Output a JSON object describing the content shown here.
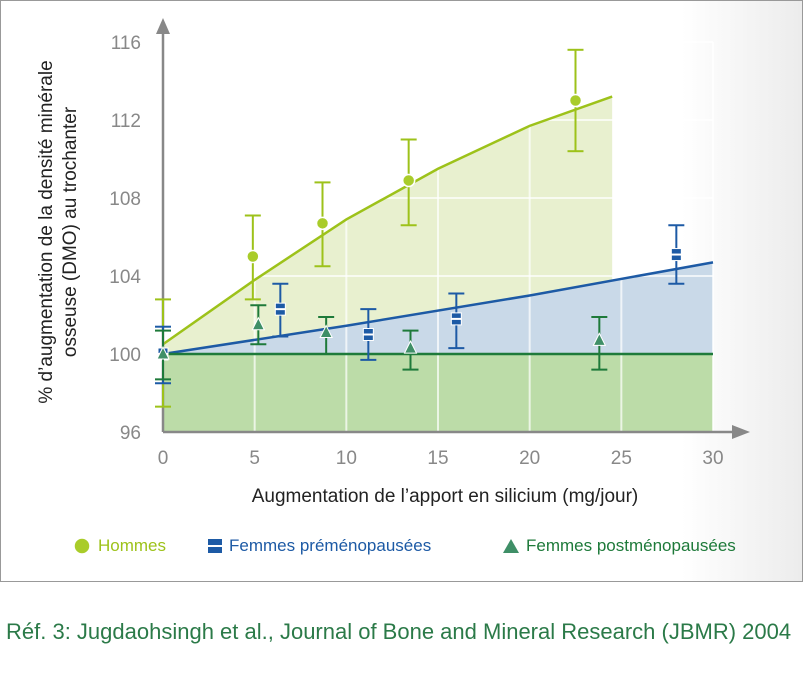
{
  "chart_data": {
    "type": "scatter",
    "xlabel": "Augmentation de l’apport en silicium (mg/jour)",
    "ylabel": "% d’augmentation de la densité minérale osseuse (DMO) au trochanter",
    "xlim": [
      0,
      30
    ],
    "ylim": [
      96,
      116
    ],
    "xticks": [
      "0",
      "5",
      "10",
      "15",
      "20",
      "25",
      "30"
    ],
    "yticks": [
      "96",
      "100",
      "104",
      "108",
      "112",
      "116"
    ],
    "grid": true,
    "legend_position": "bottom",
    "series": [
      {
        "name": "Hommes",
        "color": "#9dc21a",
        "fill": "#e8f0cf",
        "marker": "circle",
        "points": [
          {
            "x": 4.9,
            "y": 105.0,
            "lo": 102.8,
            "hi": 107.1
          },
          {
            "x": 8.7,
            "y": 106.7,
            "lo": 104.5,
            "hi": 108.8
          },
          {
            "x": 13.4,
            "y": 108.9,
            "lo": 106.6,
            "hi": 111.0
          },
          {
            "x": 22.5,
            "y": 113.0,
            "lo": 110.4,
            "hi": 115.6
          },
          {
            "x": 0,
            "y": 100,
            "lo": 97.3,
            "hi": 102.8,
            "nomarker": true
          }
        ],
        "fit": [
          [
            0,
            100.5
          ],
          [
            5,
            103.8
          ],
          [
            10,
            106.9
          ],
          [
            15,
            109.5
          ],
          [
            20,
            111.7
          ],
          [
            24.5,
            113.2
          ]
        ]
      },
      {
        "name": "Femmes préménopausées",
        "color": "#1d5aa5",
        "fill": "#c9d9e8",
        "marker": "bar",
        "points": [
          {
            "x": 0,
            "y": 100,
            "lo": 98.5,
            "hi": 101.4
          },
          {
            "x": 6.4,
            "y": 102.3,
            "lo": 100.9,
            "hi": 103.6
          },
          {
            "x": 11.2,
            "y": 101.0,
            "lo": 99.7,
            "hi": 102.3
          },
          {
            "x": 16,
            "y": 101.8,
            "lo": 100.3,
            "hi": 103.1
          },
          {
            "x": 28,
            "y": 105.1,
            "lo": 103.6,
            "hi": 106.6
          }
        ],
        "fit": [
          [
            0,
            100
          ],
          [
            10,
            101.45
          ],
          [
            20,
            103.0
          ],
          [
            30,
            104.7
          ]
        ]
      },
      {
        "name": "Femmes postménopausées",
        "color": "#1e7a3a",
        "fill": "#bcdca8",
        "marker": "triangle",
        "points": [
          {
            "x": 0,
            "y": 100,
            "lo": 98.7,
            "hi": 101.2
          },
          {
            "x": 5.2,
            "y": 101.5,
            "lo": 100.5,
            "hi": 102.5
          },
          {
            "x": 8.9,
            "y": 101.1,
            "lo": 100,
            "hi": 101.9
          },
          {
            "x": 13.5,
            "y": 100.3,
            "lo": 99.2,
            "hi": 101.2
          },
          {
            "x": 23.8,
            "y": 100.7,
            "lo": 99.2,
            "hi": 101.9
          }
        ],
        "fit": [
          [
            0,
            100
          ],
          [
            30,
            100
          ]
        ]
      }
    ]
  },
  "citation": "Réf. 3: Jugdaohsingh et al., Journal of Bone and Mineral Research (JBMR) 2004"
}
